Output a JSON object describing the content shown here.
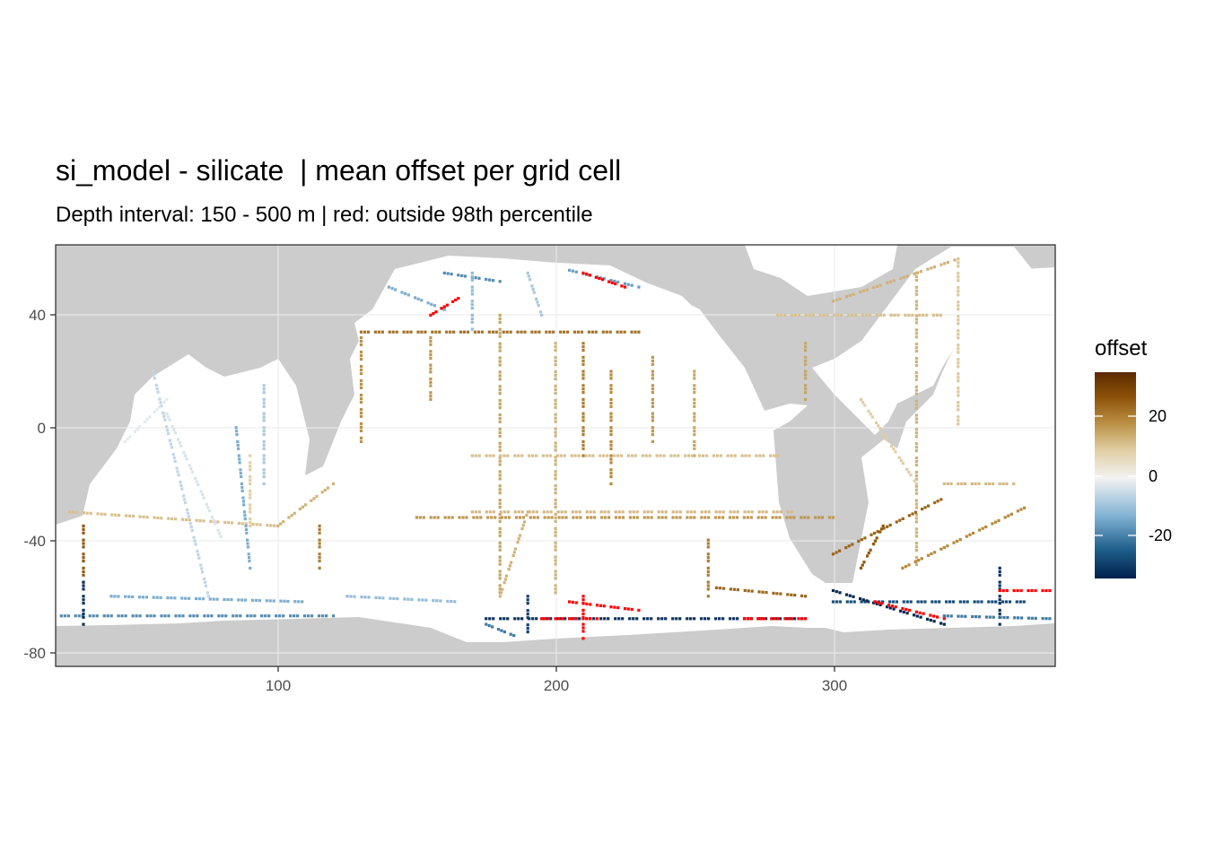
{
  "title": "si_model - silicate  | mean offset per grid cell",
  "subtitle": "Depth interval: 150 - 500 m | red: outside 98th percentile",
  "chart_data": {
    "type": "heatmap",
    "x_ticks": [
      100,
      200,
      300
    ],
    "y_ticks": [
      40,
      0,
      -40,
      -80
    ],
    "x_range": [
      20,
      380
    ],
    "y_range": [
      -85,
      65
    ],
    "grid": true,
    "legend": {
      "title": "offset",
      "position": "right",
      "range": [
        -33,
        35
      ],
      "ticks": [
        20,
        0,
        -20
      ],
      "colors": [
        "#00204D",
        "#1F5F8B",
        "#7FB1D3",
        "#F2F2F2",
        "#E1CFA5",
        "#B88C3E",
        "#8C5109",
        "#5B2A02"
      ]
    },
    "outlier_color": "#FF0000",
    "land_color": "#CCCCCC",
    "ocean_color": "#FFFFFF",
    "tracks": [
      {
        "x0": 130,
        "y0": 34,
        "x1": 230,
        "y1": 34,
        "v": 20
      },
      {
        "x0": 130,
        "y0": 32,
        "x1": 130,
        "y1": -5,
        "v": 15
      },
      {
        "x0": 155,
        "y0": 32,
        "x1": 155,
        "y1": 10,
        "v": 14
      },
      {
        "x0": 180,
        "y0": 40,
        "x1": 180,
        "y1": -60,
        "v": 12
      },
      {
        "x0": 200,
        "y0": 30,
        "x1": 200,
        "y1": -60,
        "v": 10
      },
      {
        "x0": 210,
        "y0": 30,
        "x1": 210,
        "y1": -10,
        "v": 18
      },
      {
        "x0": 220,
        "y0": 20,
        "x1": 220,
        "y1": -20,
        "v": 16
      },
      {
        "x0": 235,
        "y0": 25,
        "x1": 235,
        "y1": -5,
        "v": 14
      },
      {
        "x0": 250,
        "y0": 20,
        "x1": 250,
        "y1": -10,
        "v": 12
      },
      {
        "x0": 170,
        "y0": -10,
        "x1": 280,
        "y1": -10,
        "v": 8
      },
      {
        "x0": 170,
        "y0": -30,
        "x1": 285,
        "y1": -30,
        "v": 9
      },
      {
        "x0": 150,
        "y0": -32,
        "x1": 300,
        "y1": -32,
        "v": 14
      },
      {
        "x0": 180,
        "y0": -60,
        "x1": 190,
        "y1": -30,
        "v": 10
      },
      {
        "x0": 255,
        "y0": -40,
        "x1": 255,
        "y1": -60,
        "v": 18
      },
      {
        "x0": 258,
        "y0": -57,
        "x1": 290,
        "y1": -60,
        "v": 22
      },
      {
        "x0": 300,
        "y0": 45,
        "x1": 345,
        "y1": 60,
        "v": 10
      },
      {
        "x0": 280,
        "y0": 40,
        "x1": 340,
        "y1": 40,
        "v": 8
      },
      {
        "x0": 290,
        "y0": 30,
        "x1": 290,
        "y1": 10,
        "v": 12
      },
      {
        "x0": 330,
        "y0": 55,
        "x1": 330,
        "y1": -50,
        "v": 10
      },
      {
        "x0": 345,
        "y0": 60,
        "x1": 345,
        "y1": 0,
        "v": 7
      },
      {
        "x0": 310,
        "y0": 10,
        "x1": 330,
        "y1": -20,
        "v": 6
      },
      {
        "x0": 300,
        "y0": -45,
        "x1": 340,
        "y1": -25,
        "v": 22
      },
      {
        "x0": 325,
        "y0": -50,
        "x1": 370,
        "y1": -28,
        "v": 16
      },
      {
        "x0": 310,
        "y0": -50,
        "x1": 318,
        "y1": -35,
        "v": 24
      },
      {
        "x0": 340,
        "y0": -20,
        "x1": 365,
        "y1": -20,
        "v": 9
      },
      {
        "x0": 25,
        "y0": -30,
        "x1": 100,
        "y1": -35,
        "v": 8
      },
      {
        "x0": 90,
        "y0": -35,
        "x1": 90,
        "y1": -10,
        "v": 6
      },
      {
        "x0": 100,
        "y0": -35,
        "x1": 120,
        "y1": -20,
        "v": 10
      },
      {
        "x0": 115,
        "y0": -35,
        "x1": 115,
        "y1": -50,
        "v": 18
      },
      {
        "x0": 30,
        "y0": -35,
        "x1": 30,
        "y1": -55,
        "v": 24
      },
      {
        "x0": 60,
        "y0": 5,
        "x1": 80,
        "y1": -40,
        "v": -6
      },
      {
        "x0": 55,
        "y0": 20,
        "x1": 75,
        "y1": -60,
        "v": -8
      },
      {
        "x0": 85,
        "y0": 0,
        "x1": 90,
        "y1": -50,
        "v": -14
      },
      {
        "x0": 95,
        "y0": 15,
        "x1": 95,
        "y1": -20,
        "v": -10
      },
      {
        "x0": 45,
        "y0": -5,
        "x1": 60,
        "y1": 10,
        "v": -5
      },
      {
        "x0": 140,
        "y0": 50,
        "x1": 160,
        "y1": 42,
        "v": -14
      },
      {
        "x0": 160,
        "y0": 55,
        "x1": 180,
        "y1": 52,
        "v": -18
      },
      {
        "x0": 170,
        "y0": 55,
        "x1": 170,
        "y1": 35,
        "v": -12
      },
      {
        "x0": 205,
        "y0": 56,
        "x1": 230,
        "y1": 50,
        "v": -16
      },
      {
        "x0": 190,
        "y0": 55,
        "x1": 195,
        "y1": 40,
        "v": -10
      },
      {
        "x0": 22,
        "y0": -67,
        "x1": 120,
        "y1": -67,
        "v": -18
      },
      {
        "x0": 30,
        "y0": -55,
        "x1": 30,
        "y1": -70,
        "v": -30
      },
      {
        "x0": 40,
        "y0": -60,
        "x1": 110,
        "y1": -62,
        "v": -14
      },
      {
        "x0": 125,
        "y0": -60,
        "x1": 165,
        "y1": -62,
        "v": -12
      },
      {
        "x0": 175,
        "y0": -68,
        "x1": 290,
        "y1": -68,
        "v": -30
      },
      {
        "x0": 175,
        "y0": -70,
        "x1": 185,
        "y1": -74,
        "v": -20
      },
      {
        "x0": 190,
        "y0": -60,
        "x1": 190,
        "y1": -74,
        "v": -28
      },
      {
        "x0": 300,
        "y0": -62,
        "x1": 370,
        "y1": -62,
        "v": -26
      },
      {
        "x0": 300,
        "y0": -58,
        "x1": 340,
        "y1": -70,
        "v": -32
      },
      {
        "x0": 360,
        "y0": -50,
        "x1": 360,
        "y1": -70,
        "v": -30
      },
      {
        "x0": 340,
        "y0": -67,
        "x1": 378,
        "y1": -68,
        "v": -20
      }
    ],
    "outliers": [
      {
        "x0": 155,
        "y0": 40,
        "x1": 165,
        "y1": 46
      },
      {
        "x0": 210,
        "y0": 55,
        "x1": 225,
        "y1": 50
      },
      {
        "x0": 205,
        "y0": -62,
        "x1": 230,
        "y1": -65
      },
      {
        "x0": 210,
        "y0": -60,
        "x1": 210,
        "y1": -75
      },
      {
        "x0": 195,
        "y0": -68,
        "x1": 215,
        "y1": -68
      },
      {
        "x0": 268,
        "y0": -68,
        "x1": 290,
        "y1": -68
      },
      {
        "x0": 315,
        "y0": -62,
        "x1": 340,
        "y1": -68
      },
      {
        "x0": 360,
        "y0": -58,
        "x1": 378,
        "y1": -58
      }
    ]
  }
}
